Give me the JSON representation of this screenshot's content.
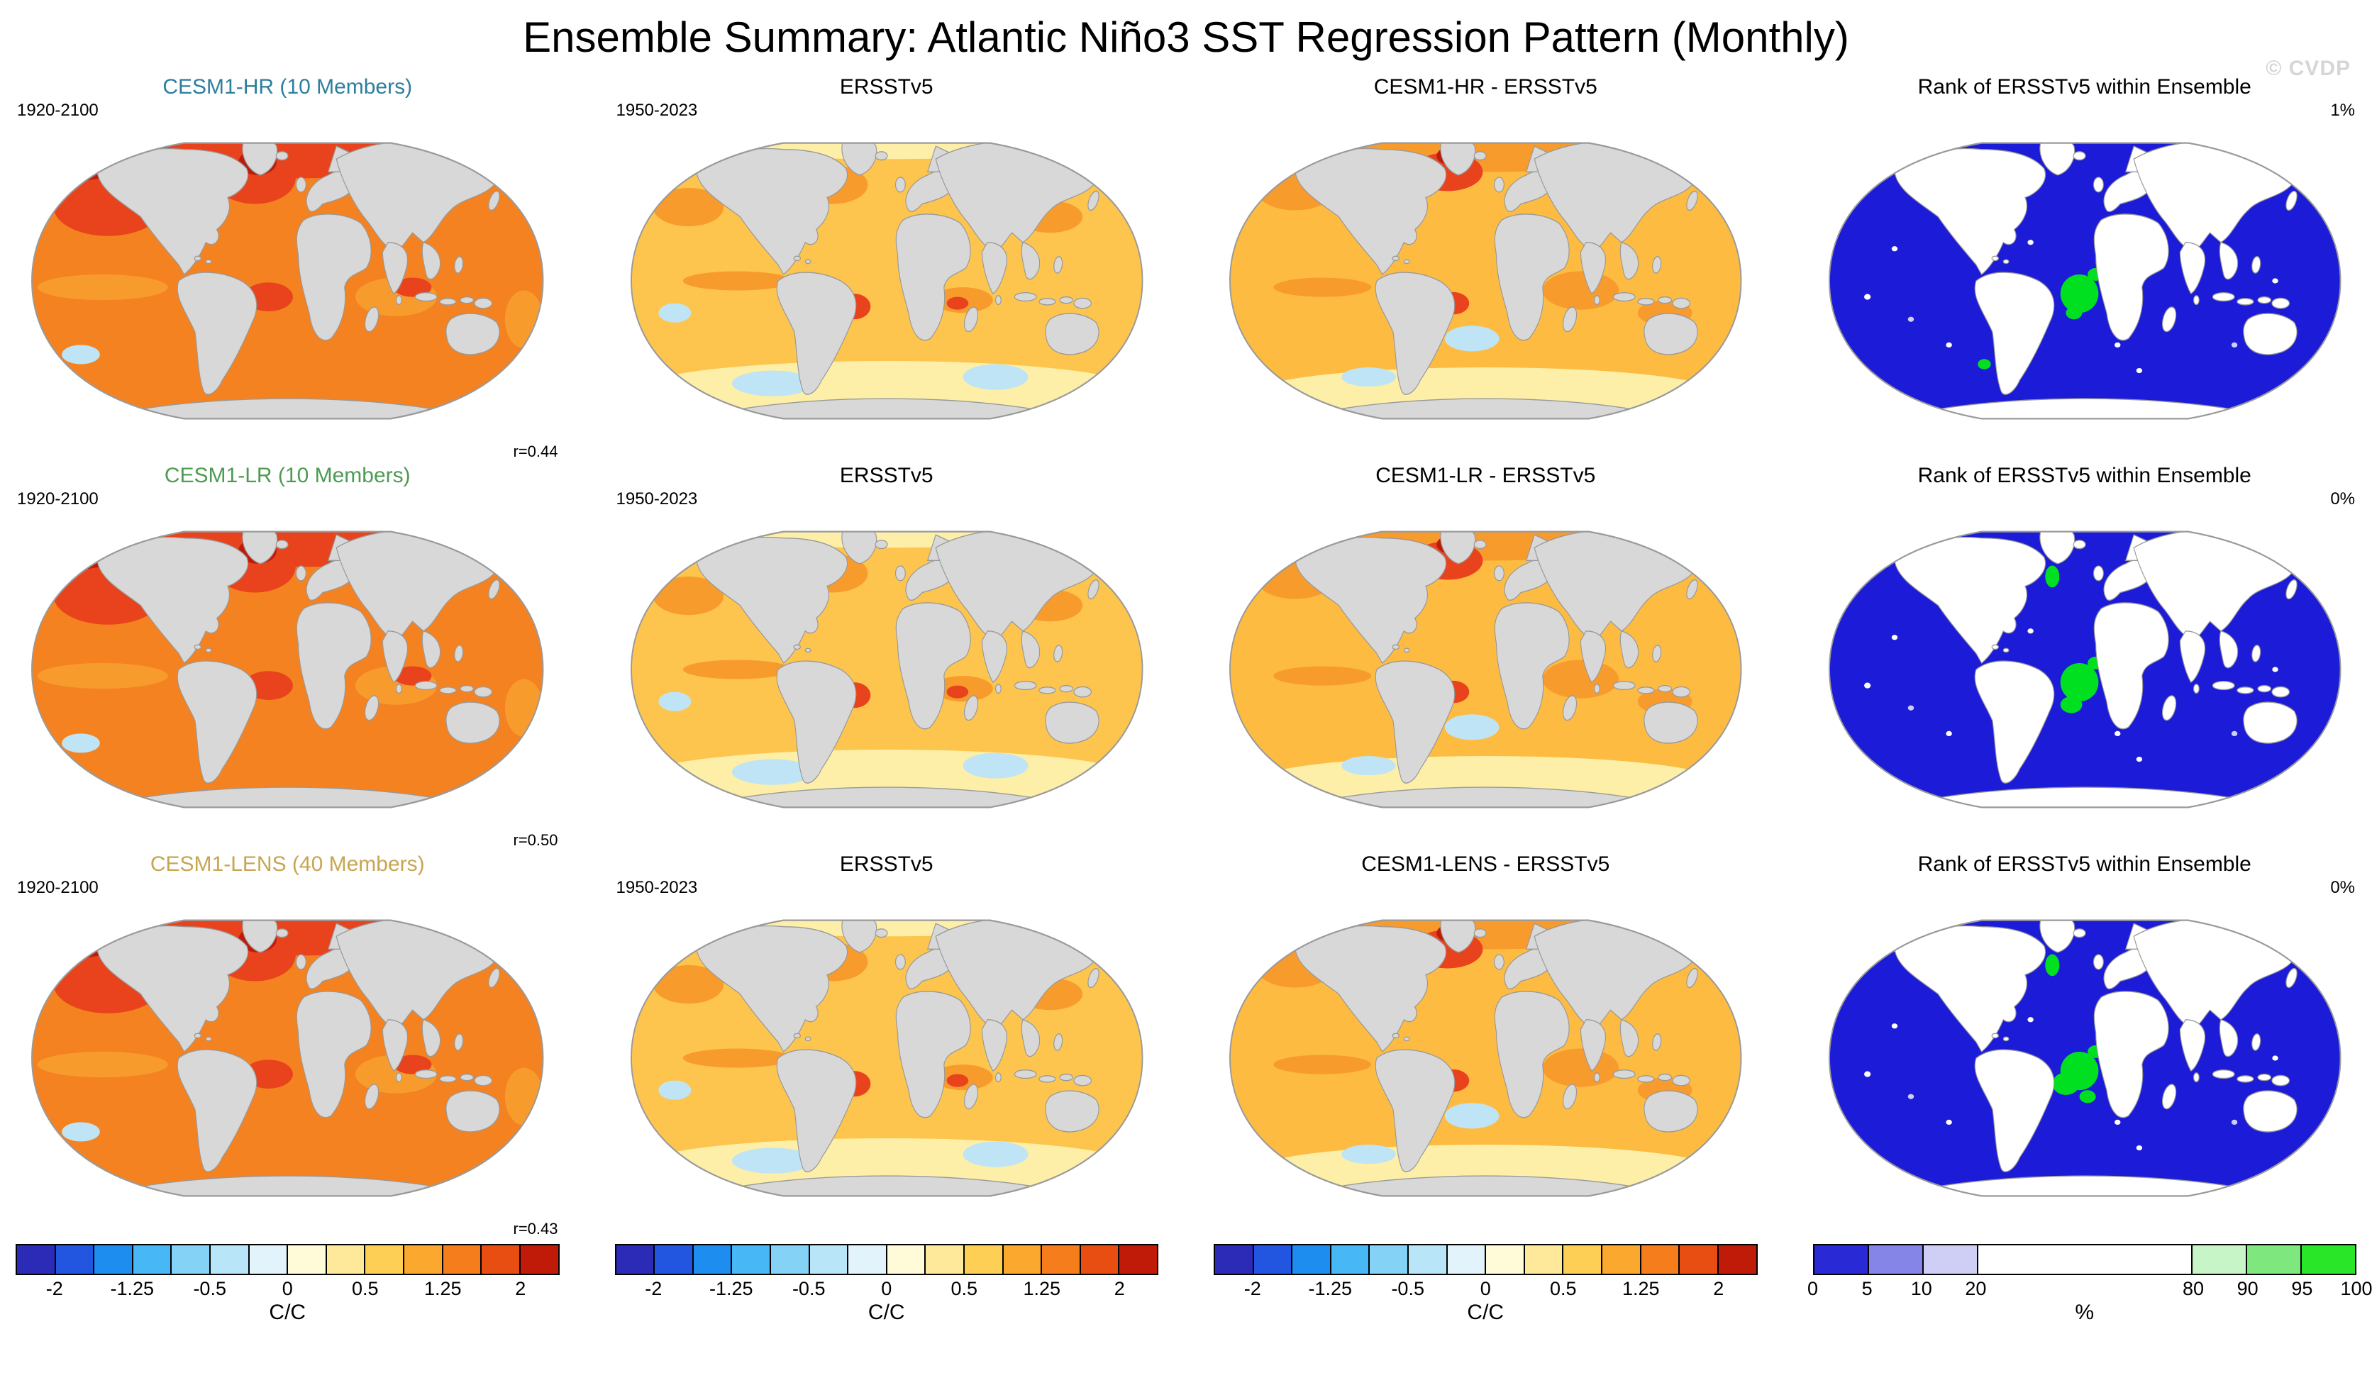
{
  "title": "Ensemble Summary: Atlantic Niño3 SST Regression Pattern (Monthly)",
  "watermark": "© CVDP",
  "panels": [
    {
      "row": 0,
      "col": 0,
      "title": "CESM1-HR (10 Members)",
      "title_color": "#2E7E9E",
      "period": "1920-2100",
      "r_value": "r=0.44",
      "map_type": "sst"
    },
    {
      "row": 0,
      "col": 1,
      "title": "ERSSTv5",
      "title_color": "#000000",
      "period": "1950-2023",
      "map_type": "obs"
    },
    {
      "row": 0,
      "col": 2,
      "title": "CESM1-HR - ERSSTv5",
      "title_color": "#000000",
      "map_type": "diff"
    },
    {
      "row": 0,
      "col": 3,
      "title": "Rank of ERSSTv5 within Ensemble",
      "title_color": "#000000",
      "percent": "1%",
      "map_type": "rank"
    },
    {
      "row": 1,
      "col": 0,
      "title": "CESM1-LR (10 Members)",
      "title_color": "#4D9B52",
      "period": "1920-2100",
      "r_value": "r=0.50",
      "map_type": "sst"
    },
    {
      "row": 1,
      "col": 1,
      "title": "ERSSTv5",
      "title_color": "#000000",
      "period": "1950-2023",
      "map_type": "obs"
    },
    {
      "row": 1,
      "col": 2,
      "title": "CESM1-LR - ERSSTv5",
      "title_color": "#000000",
      "map_type": "diff"
    },
    {
      "row": 1,
      "col": 3,
      "title": "Rank of ERSSTv5 within Ensemble",
      "title_color": "#000000",
      "percent": "0%",
      "map_type": "rank"
    },
    {
      "row": 2,
      "col": 0,
      "title": "CESM1-LENS (40 Members)",
      "title_color": "#C8A551",
      "period": "1920-2100",
      "r_value": "r=0.43",
      "map_type": "sst"
    },
    {
      "row": 2,
      "col": 1,
      "title": "ERSSTv5",
      "title_color": "#000000",
      "period": "1950-2023",
      "map_type": "obs"
    },
    {
      "row": 2,
      "col": 2,
      "title": "CESM1-LENS - ERSSTv5",
      "title_color": "#000000",
      "map_type": "diff"
    },
    {
      "row": 2,
      "col": 3,
      "title": "Rank of ERSSTv5 within Ensemble",
      "title_color": "#000000",
      "percent": "0%",
      "map_type": "rank"
    }
  ],
  "map_colors": {
    "sst_base": "#F58220",
    "obs_base": "#FDC54E",
    "diff_base": "#FDBB42",
    "rank_base": "#1B1BD8",
    "mid": "#F89B2D",
    "hot": "#E8431C",
    "hotter": "#BF1A0A",
    "coolpale": "#BFE4F5",
    "paleyellow": "#FDEFA8",
    "cyan": "#9FD8EF",
    "green": "#00E020",
    "white": "#FFFFFF",
    "lavender": "#CFCFF5",
    "land_gray": "#D8D8D8",
    "land_white": "#FFFFFF",
    "land_border": "#999999"
  },
  "colorbars": {
    "order": [
      "regression",
      "regression",
      "regression",
      "rank"
    ],
    "regression": {
      "unit": "C/C",
      "colors": [
        {
          "c": "#2B2BB8",
          "w": 1
        },
        {
          "c": "#2356E0",
          "w": 1
        },
        {
          "c": "#1E8DF0",
          "w": 1
        },
        {
          "c": "#47B8F5",
          "w": 1
        },
        {
          "c": "#84D2F6",
          "w": 1
        },
        {
          "c": "#B9E5F8",
          "w": 1
        },
        {
          "c": "#E2F3FB",
          "w": 1
        },
        {
          "c": "#FFFBD8",
          "w": 1
        },
        {
          "c": "#FEE99A",
          "w": 1
        },
        {
          "c": "#FDCF54",
          "w": 1
        },
        {
          "c": "#FBA82E",
          "w": 1
        },
        {
          "c": "#F57D1C",
          "w": 1
        },
        {
          "c": "#E84E11",
          "w": 1
        },
        {
          "c": "#C01A09",
          "w": 1
        }
      ],
      "ticks": [
        {
          "label": "-2",
          "pos": 7.14
        },
        {
          "label": "-1.25",
          "pos": 21.43
        },
        {
          "label": "-0.5",
          "pos": 35.71
        },
        {
          "label": "0",
          "pos": 50
        },
        {
          "label": "0.5",
          "pos": 64.29
        },
        {
          "label": "1.25",
          "pos": 78.57
        },
        {
          "label": "2",
          "pos": 92.86
        }
      ]
    },
    "rank": {
      "unit": "%",
      "colors": [
        {
          "c": "#2929D6",
          "w": 1
        },
        {
          "c": "#8585E8",
          "w": 1
        },
        {
          "c": "#CFCFF5",
          "w": 1
        },
        {
          "c": "#FFFFFF",
          "w": 4
        },
        {
          "c": "#C8F5C8",
          "w": 1
        },
        {
          "c": "#7EE87E",
          "w": 1
        },
        {
          "c": "#29E629",
          "w": 1
        }
      ],
      "ticks": [
        {
          "label": "0",
          "pos": 0
        },
        {
          "label": "5",
          "pos": 10
        },
        {
          "label": "10",
          "pos": 20
        },
        {
          "label": "20",
          "pos": 30
        },
        {
          "label": "80",
          "pos": 70
        },
        {
          "label": "90",
          "pos": 80
        },
        {
          "label": "95",
          "pos": 90
        },
        {
          "label": "100",
          "pos": 100
        }
      ]
    }
  },
  "chart_data": {
    "type": "heatmap",
    "subtype": "global-map-grid",
    "title": "Ensemble Summary: Atlantic Niño3 SST Regression Pattern (Monthly)",
    "grid": {
      "rows": 3,
      "cols": 4
    },
    "column_meanings": [
      "ensemble mean regression pattern",
      "observations (ERSSTv5)",
      "ensemble minus observations",
      "rank of ERSSTv5 within ensemble"
    ],
    "rows": [
      {
        "ensemble": "CESM1-HR (10 Members)",
        "ensemble_period": "1920-2100",
        "obs": "ERSSTv5",
        "obs_period": "1950-2023",
        "diff": "CESM1-HR - ERSSTv5",
        "rank": "Rank of ERSSTv5 within Ensemble",
        "pattern_correlation": 0.44,
        "rank_area_percent": "1%"
      },
      {
        "ensemble": "CESM1-LR (10 Members)",
        "ensemble_period": "1920-2100",
        "obs": "ERSSTv5",
        "obs_period": "1950-2023",
        "diff": "CESM1-LR - ERSSTv5",
        "rank": "Rank of ERSSTv5 within Ensemble",
        "pattern_correlation": 0.5,
        "rank_area_percent": "0%"
      },
      {
        "ensemble": "CESM1-LENS (40 Members)",
        "ensemble_period": "1920-2100",
        "obs": "ERSSTv5",
        "obs_period": "1950-2023",
        "diff": "CESM1-LENS - ERSSTv5",
        "rank": "Rank of ERSSTv5 within Ensemble",
        "pattern_correlation": 0.43,
        "rank_area_percent": "0%"
      }
    ],
    "colorbars": [
      {
        "applies_to": "columns 1-3",
        "units": "C/C",
        "tick_labels": [
          "-2",
          "-1.25",
          "-0.5",
          "0",
          "0.5",
          "1.25",
          "2"
        ]
      },
      {
        "applies_to": "column 4",
        "units": "%",
        "tick_labels": [
          "0",
          "5",
          "10",
          "20",
          "80",
          "90",
          "95",
          "100"
        ]
      }
    ]
  }
}
